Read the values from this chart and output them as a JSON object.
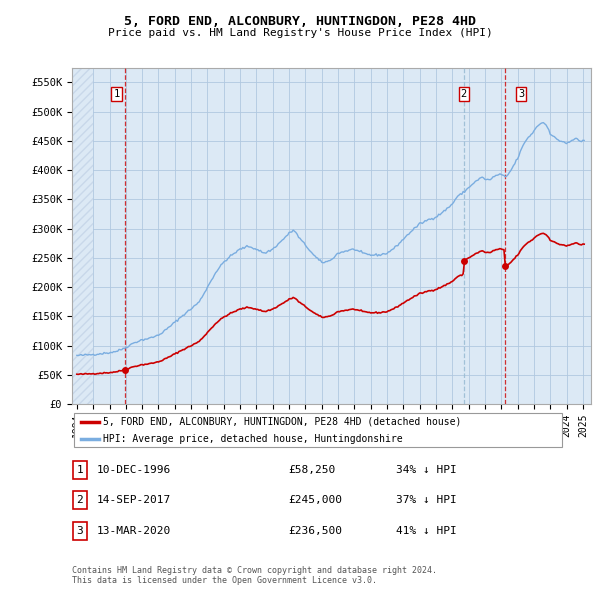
{
  "title": "5, FORD END, ALCONBURY, HUNTINGDON, PE28 4HD",
  "subtitle": "Price paid vs. HM Land Registry's House Price Index (HPI)",
  "ylim": [
    0,
    575000
  ],
  "yticks": [
    0,
    50000,
    100000,
    150000,
    200000,
    250000,
    300000,
    350000,
    400000,
    450000,
    500000,
    550000
  ],
  "ytick_labels": [
    "£0",
    "£50K",
    "£100K",
    "£150K",
    "£200K",
    "£250K",
    "£300K",
    "£350K",
    "£400K",
    "£450K",
    "£500K",
    "£550K"
  ],
  "xlim_start": 1993.7,
  "xlim_end": 2025.5,
  "line_color_property": "#cc0000",
  "line_color_hpi": "#7aade0",
  "transaction1": {
    "value": 58250,
    "label": "1",
    "x": 1996.92
  },
  "transaction2": {
    "value": 245000,
    "label": "2",
    "x": 2017.71
  },
  "transaction3": {
    "value": 236500,
    "label": "3",
    "x": 2020.21
  },
  "legend_label_property": "5, FORD END, ALCONBURY, HUNTINGDON, PE28 4HD (detached house)",
  "legend_label_hpi": "HPI: Average price, detached house, Huntingdonshire",
  "table_rows": [
    {
      "num": "1",
      "date": "10-DEC-1996",
      "price": "£58,250",
      "hpi": "34% ↓ HPI"
    },
    {
      "num": "2",
      "date": "14-SEP-2017",
      "price": "£245,000",
      "hpi": "37% ↓ HPI"
    },
    {
      "num": "3",
      "date": "13-MAR-2020",
      "price": "£236,500",
      "hpi": "41% ↓ HPI"
    }
  ],
  "footer": "Contains HM Land Registry data © Crown copyright and database right 2024.\nThis data is licensed under the Open Government Licence v3.0.",
  "plot_bg_color": "#dce9f5",
  "hatch_color": "#c8d8ea",
  "grid_color": "#b0c8e0",
  "label_box_color": "#cc0000",
  "vline1_color": "#cc0000",
  "vline23_color": "#9bbdd4"
}
